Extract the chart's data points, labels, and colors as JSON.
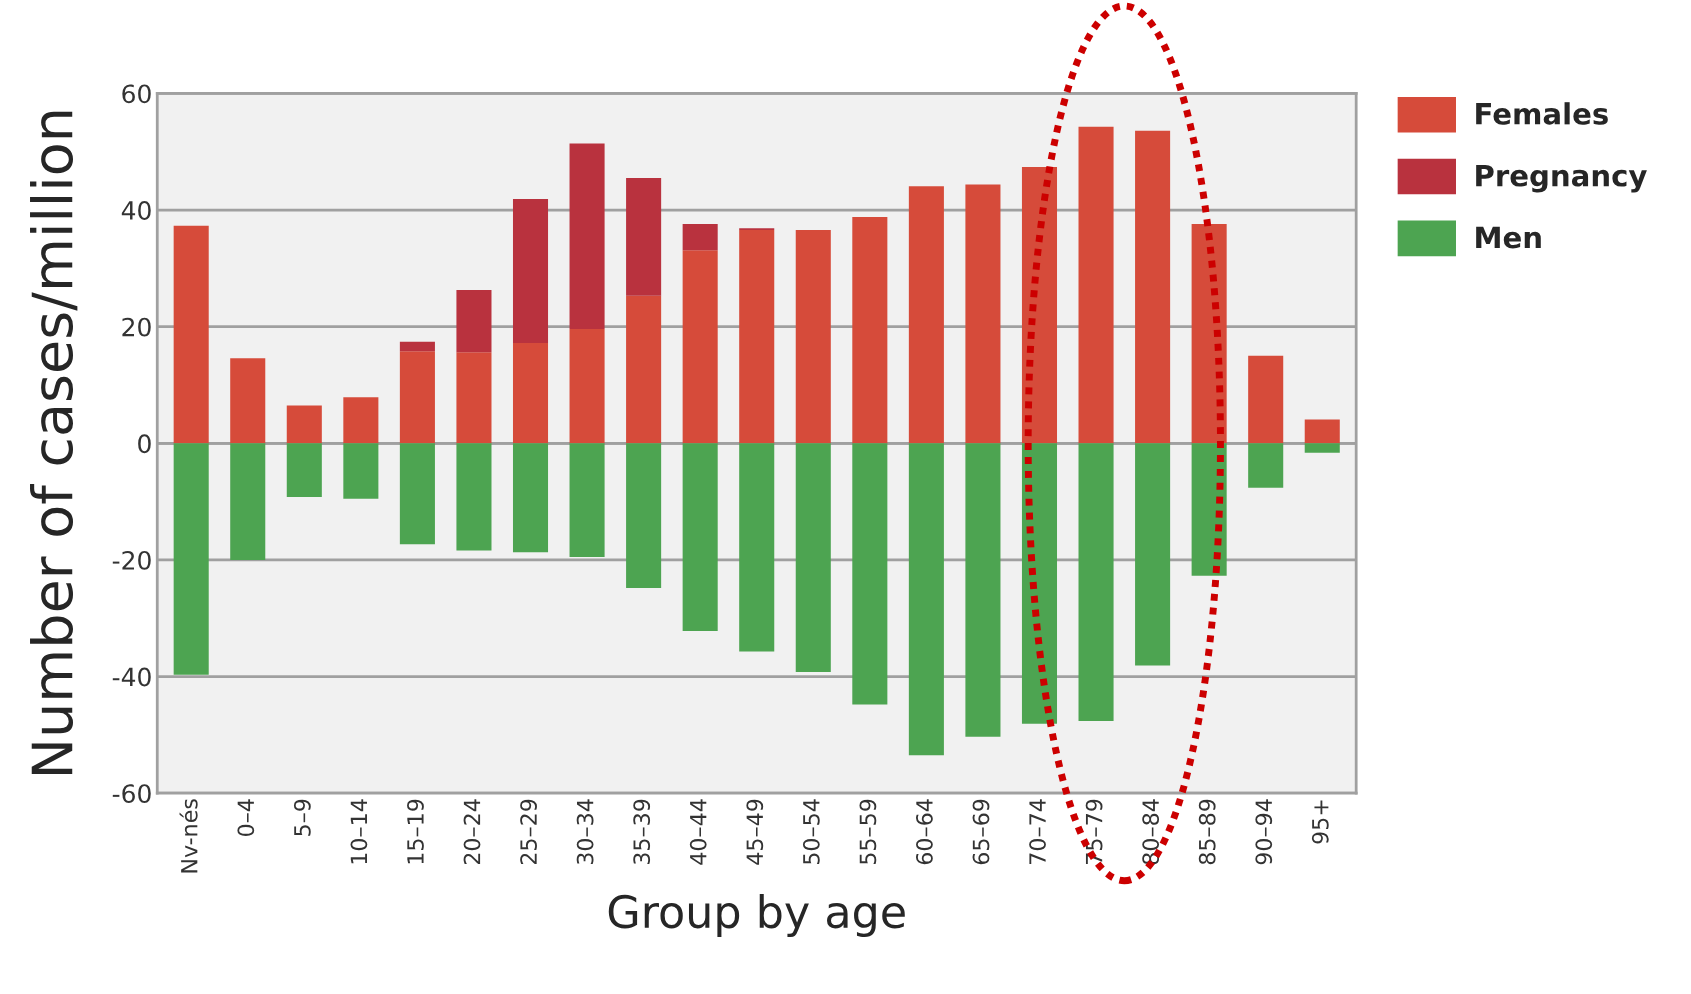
{
  "chart_data": {
    "type": "bar",
    "stacked": true,
    "xlabel": "Group by age",
    "ylabel": "Number of cases/million",
    "categories": [
      "Nv-nés",
      "0–4",
      "5–9",
      "10–14",
      "15–19",
      "20–24",
      "25–29",
      "30–34",
      "35–39",
      "40–44",
      "45–49",
      "50–54",
      "55–59",
      "60–64",
      "65–69",
      "70–74",
      "75–79",
      "80–84",
      "85–89",
      "90–94",
      "95+"
    ],
    "series": [
      {
        "name": "Females",
        "color": "#d64b3a",
        "values": [
          37.3,
          14.6,
          6.5,
          7.9,
          15.8,
          15.6,
          17.2,
          19.6,
          25.3,
          33.1,
          36.6,
          36.6,
          38.8,
          44.1,
          44.4,
          47.4,
          54.3,
          53.6,
          37.6,
          15.0,
          4.1
        ]
      },
      {
        "name": "Pregnancy",
        "color": "#b9323e",
        "values": [
          null,
          null,
          null,
          null,
          1.6,
          10.7,
          24.7,
          31.8,
          20.2,
          4.5,
          0.3,
          null,
          null,
          null,
          null,
          null,
          null,
          null,
          null,
          null,
          null
        ]
      },
      {
        "name": "Men",
        "color": "#4da451",
        "values": [
          -39.7,
          -20.0,
          -9.2,
          -9.5,
          -17.3,
          -18.4,
          -18.7,
          -19.5,
          -24.8,
          -32.2,
          -35.7,
          -39.2,
          -44.8,
          -53.5,
          -50.3,
          -48.1,
          -47.6,
          -38.1,
          -22.7,
          -7.6,
          -1.6
        ]
      }
    ],
    "ylim": [
      -60,
      60
    ],
    "yticks": [
      -60,
      -40,
      -20,
      0,
      20,
      40,
      60
    ],
    "grid": "y",
    "legend": "right"
  }
}
